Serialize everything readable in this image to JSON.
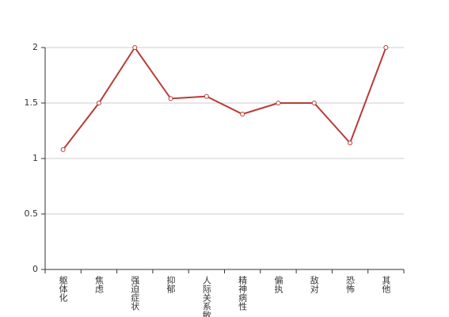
{
  "chart_data": {
    "type": "line",
    "categories": [
      "躯体化",
      "焦虑",
      "强迫症状",
      "抑郁",
      "人际关系敏感",
      "精神病性",
      "偏执",
      "敌对",
      "恐怖",
      "其他"
    ],
    "series": [
      {
        "values": [
          1.08,
          1.5,
          2,
          1.54,
          1.56,
          1.4,
          1.5,
          1.5,
          1.14,
          2
        ],
        "color": "#b83b36"
      }
    ],
    "ylim": [
      0,
      2
    ],
    "yticks": [
      0,
      0.5,
      1,
      1.5,
      2
    ],
    "grid": true
  }
}
